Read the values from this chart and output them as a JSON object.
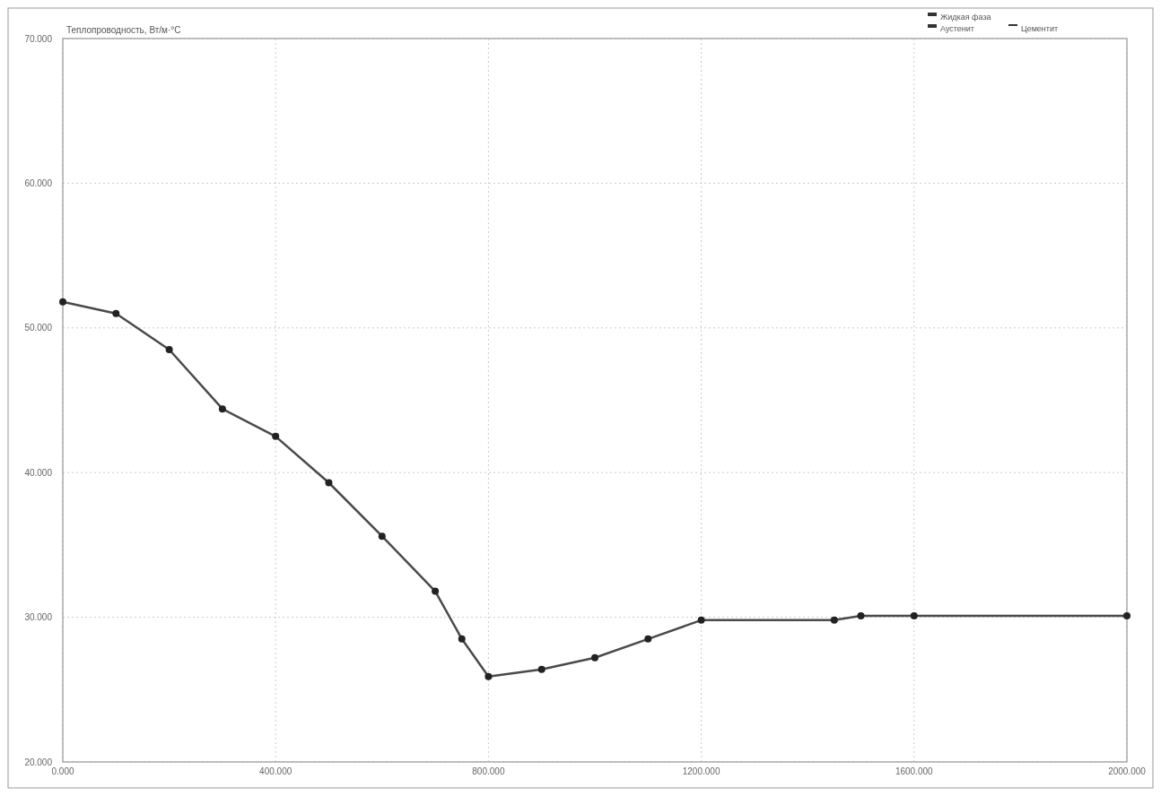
{
  "chart_data": {
    "type": "line",
    "title": "Теплопроводность, Вт/м·°С",
    "x": [
      0,
      100,
      200,
      300,
      400,
      500,
      600,
      700,
      750,
      800,
      900,
      1000,
      1100,
      1200,
      1450,
      1500,
      1600,
      2000
    ],
    "series": [
      {
        "color": "#4a4a4a",
        "values": [
          51.8,
          51.0,
          48.5,
          44.4,
          42.5,
          39.3,
          35.6,
          31.8,
          28.5,
          25.9,
          26.4,
          27.2,
          28.5,
          29.8,
          29.8,
          30.1,
          30.1,
          30.1
        ]
      }
    ],
    "xlim": [
      0,
      2000
    ],
    "xticks": [
      {
        "value": 0,
        "label": "0.000"
      },
      {
        "value": 400,
        "label": "400.000"
      },
      {
        "value": 800,
        "label": "800.000"
      },
      {
        "value": 1200,
        "label": "1200.000"
      },
      {
        "value": 1600,
        "label": "1600.000"
      },
      {
        "value": 2000,
        "label": "2000.000"
      }
    ],
    "ylim": [
      20,
      70
    ],
    "yticks": [
      {
        "value": 20,
        "label": "20.000"
      },
      {
        "value": 30,
        "label": "30.000"
      },
      {
        "value": 40,
        "label": "40.000"
      },
      {
        "value": 50,
        "label": "50.000"
      },
      {
        "value": 60,
        "label": "60.000"
      },
      {
        "value": 70,
        "label": "70.000"
      }
    ],
    "grid": true,
    "marker": "circle",
    "line_style": "solid",
    "annotations": [
      "Жидкая фаза",
      "Аустенит",
      "Цементит"
    ]
  }
}
